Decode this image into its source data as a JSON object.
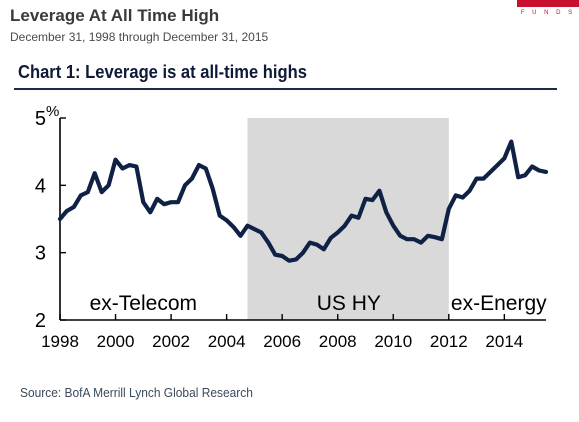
{
  "header": {
    "title": "Leverage At All Time High",
    "subtitle": "December 31, 1998  through December 31, 2015",
    "logo_text": "F U N D S"
  },
  "colors": {
    "line": "#0f2144",
    "shade": "#d9d9d9",
    "logo": "#c8102e"
  },
  "chart_data": {
    "type": "line",
    "title": "Chart 1: Leverage is at all-time highs",
    "ylabel": "%",
    "xlim": [
      1998,
      2015.5
    ],
    "ylim": [
      2,
      5
    ],
    "xticks": [
      1998,
      2000,
      2002,
      2004,
      2006,
      2008,
      2010,
      2012,
      2014
    ],
    "xtick_labels": [
      "1998",
      "2000",
      "2002",
      "2004",
      "2006",
      "2008",
      "2010",
      "2012",
      "2014"
    ],
    "yticks": [
      2,
      3,
      4,
      5
    ],
    "ytick_labels": [
      "2",
      "3",
      "4",
      "5"
    ],
    "grid": false,
    "shaded_region": {
      "x_start": 2004.75,
      "x_end": 2012.0
    },
    "annotations": [
      {
        "text": "ex-Telecom",
        "x": 2001.0,
        "y": 2.3
      },
      {
        "text": "US HY",
        "x": 2008.4,
        "y": 2.3
      },
      {
        "text": "ex-Energy",
        "x": 2013.8,
        "y": 2.3
      }
    ],
    "series": [
      {
        "x": [
          1998.0,
          1998.25,
          1998.5,
          1998.75,
          1999.0,
          1999.25,
          1999.5,
          1999.75,
          2000.0,
          2000.25,
          2000.5,
          2000.75,
          2001.0,
          2001.25,
          2001.5,
          2001.75,
          2002.0,
          2002.25,
          2002.5,
          2002.75,
          2003.0,
          2003.25,
          2003.5,
          2003.75,
          2004.0,
          2004.25,
          2004.5,
          2004.75,
          2005.0,
          2005.25,
          2005.5,
          2005.75,
          2006.0,
          2006.25,
          2006.5,
          2006.75,
          2007.0,
          2007.25,
          2007.5,
          2007.75,
          2008.0,
          2008.25,
          2008.5,
          2008.75,
          2009.0,
          2009.25,
          2009.5,
          2009.75,
          2010.0,
          2010.25,
          2010.5,
          2010.75,
          2011.0,
          2011.25,
          2011.5,
          2011.75,
          2012.0,
          2012.25,
          2012.5,
          2012.75,
          2013.0,
          2013.25,
          2013.5,
          2013.75,
          2014.0,
          2014.25,
          2014.5,
          2014.75,
          2015.0,
          2015.25,
          2015.5
        ],
        "y": [
          3.5,
          3.62,
          3.68,
          3.85,
          3.9,
          4.18,
          3.9,
          4.0,
          4.38,
          4.25,
          4.3,
          4.28,
          3.75,
          3.6,
          3.8,
          3.72,
          3.75,
          3.75,
          4.0,
          4.1,
          4.3,
          4.25,
          3.95,
          3.55,
          3.48,
          3.38,
          3.25,
          3.4,
          3.35,
          3.3,
          3.15,
          2.97,
          2.95,
          2.88,
          2.9,
          3.0,
          3.15,
          3.12,
          3.05,
          3.22,
          3.3,
          3.4,
          3.55,
          3.52,
          3.8,
          3.78,
          3.92,
          3.6,
          3.4,
          3.25,
          3.2,
          3.2,
          3.15,
          3.25,
          3.23,
          3.2,
          3.65,
          3.85,
          3.82,
          3.92,
          4.1,
          4.1,
          4.2,
          4.3,
          4.4,
          4.65,
          4.12,
          4.15,
          4.28,
          4.22,
          4.2
        ]
      }
    ]
  },
  "source": "Source: BofA Merrill Lynch Global Research"
}
